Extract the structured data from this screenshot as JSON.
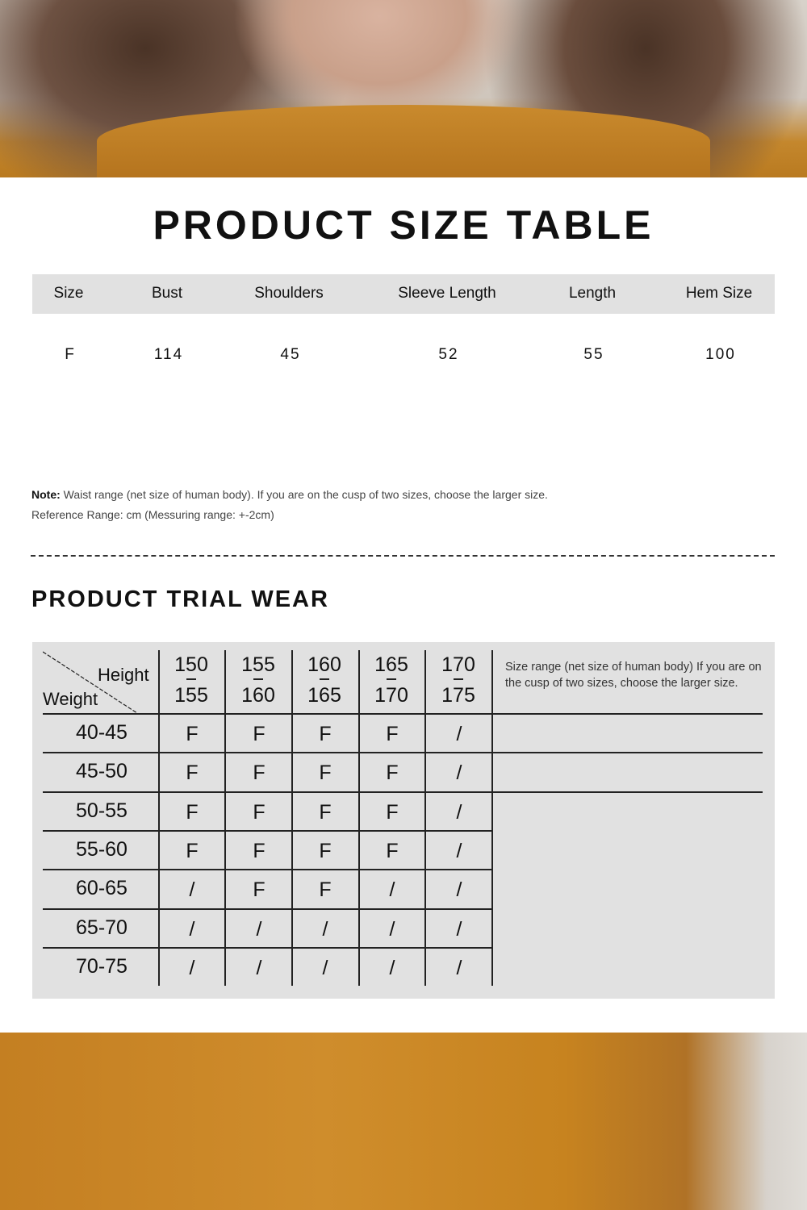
{
  "size_table": {
    "title": "PRODUCT SIZE TABLE",
    "headers": [
      "Size",
      "Bust",
      "Shoulders",
      "Sleeve Length",
      "Length",
      "Hem Size"
    ],
    "rows": [
      [
        "F",
        "114",
        "45",
        "52",
        "55",
        "100"
      ]
    ],
    "note_label": "Note:",
    "note_text": " Waist range (net size of human body). If you are on the cusp of two sizes, choose the larger size.",
    "reference": "Reference Range: cm (Messuring range: +-2cm)"
  },
  "trial_wear": {
    "title": "PRODUCT TRIAL WEAR",
    "corner_height": "Height",
    "corner_weight": "Weight",
    "heights": [
      [
        "150",
        "155"
      ],
      [
        "155",
        "160"
      ],
      [
        "160",
        "165"
      ],
      [
        "165",
        "170"
      ],
      [
        "170",
        "175"
      ]
    ],
    "side_note": "Size range (net size of human body) If you are on the cusp of two sizes, choose the larger size.",
    "rows": [
      {
        "weight": "40-45",
        "sizes": [
          "F",
          "F",
          "F",
          "F",
          "/"
        ]
      },
      {
        "weight": "45-50",
        "sizes": [
          "F",
          "F",
          "F",
          "F",
          "/"
        ]
      },
      {
        "weight": "50-55",
        "sizes": [
          "F",
          "F",
          "F",
          "F",
          "/"
        ]
      },
      {
        "weight": "55-60",
        "sizes": [
          "F",
          "F",
          "F",
          "F",
          "/"
        ]
      },
      {
        "weight": "60-65",
        "sizes": [
          "/",
          "F",
          "F",
          "/",
          "/"
        ]
      },
      {
        "weight": "65-70",
        "sizes": [
          "/",
          "/",
          "/",
          "/",
          "/"
        ]
      },
      {
        "weight": "70-75",
        "sizes": [
          "/",
          "/",
          "/",
          "/",
          "/"
        ]
      }
    ]
  },
  "colors": {
    "header_bg": "#e1e1e1",
    "sweater": "#c7831f"
  }
}
